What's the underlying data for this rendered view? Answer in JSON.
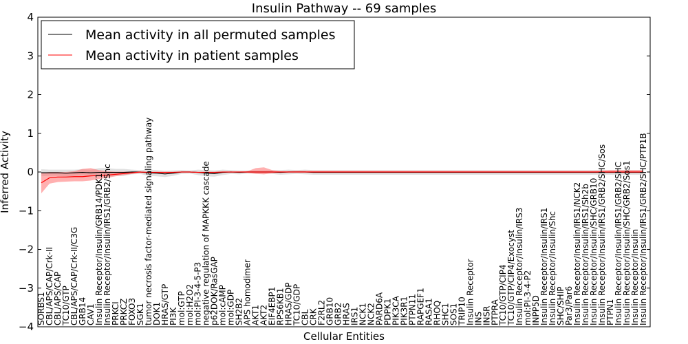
{
  "chart_data": {
    "type": "line",
    "title": "Insulin Pathway -- 69 samples",
    "xlabel": "Cellular Entities",
    "ylabel": "Inferred Activity",
    "ylim": [
      -4,
      4
    ],
    "yticks": [
      "4",
      "3",
      "2",
      "1",
      "0",
      "−1",
      "−2",
      "−3",
      "−4"
    ],
    "grid": false,
    "legend_position": "top-left",
    "colors": {
      "permuted": "#000000",
      "patient": "#ff0000",
      "permuted_band": "#c8c8c8",
      "patient_band": "#ff7070"
    },
    "categories": [
      "SORBS1",
      "CBL/APS/CAP/Crk-II",
      "CBL/APS/CAP",
      "TC10/GTP",
      "CBL/APS/CAP/Crk-II/C3G",
      "GRB14",
      "CAV1",
      "Insulin Receptor/Insulin/GRB14/PDK1",
      "Insulin Receptor/Insulin/IRS1/GRB2/Shc",
      "PRKCI",
      "PRKCZ",
      "FOXO3",
      "SGK1",
      "tumor necrosis factor-mediated signaling pathway",
      "DOK1",
      "HRAS/GTP",
      "PI3K",
      "mol:GTP",
      "mol:H2O2",
      "mol:PI-3-4-5-P3",
      "negative regulation of MAPKKK cascade",
      "p62DOK/RasGAP",
      "mol:cAMP",
      "mol:GDP",
      "SH2B2",
      "APS homodimer",
      "AKT1",
      "AKT2",
      "EIF4EBP1",
      "RPS6KB1",
      "HRAS/GDP",
      "TC10/GDP",
      "CBL",
      "CRK",
      "F2RL2",
      "GRB10",
      "GRB2",
      "HRAS",
      "IRS1",
      "NCK1",
      "NCK2",
      "PARD6A",
      "PDPK1",
      "PIK3CA",
      "PIK3R1",
      "PTPN11",
      "RAPGEF1",
      "RASA1",
      "RHOQ",
      "SHC1",
      "SOS1",
      "TRIP10",
      "Insulin Receptor",
      "INS",
      "INSR",
      "PTPRA",
      "TC10/GTP/CIP4",
      "TC10/GTP/CIP4/Exocyst",
      "Insulin Receptor/Insulin/IRS3",
      "mol:PI-3-4-P2",
      "INPP5D",
      "Insulin Receptor/Insulin/IRS1",
      "Insulin Receptor/Insulin/Shc",
      "SHC/SHIP",
      "Par3/Par6",
      "Insulin Receptor/Insulin/IRS1/NCK2",
      "Insulin Receptor/Insulin/IRS1/Sh2b",
      "Insulin Receptor/Insulin/SHC/GRB10",
      "Insulin Receptor/Insulin/IRS1/GRB2/SHC/Sos",
      "PTPN1",
      "Insulin Receptor/Insulin/IRS1/GRB2/SHC",
      "Insulin Receptor/Insulin/SHC/GRB2/Sos1",
      "Insulin Receptor/Insulin",
      "Insulin Receptor/Insulin/IRS1/GRB2/SHC/PTP1B"
    ],
    "series": [
      {
        "name": "Mean activity in all permuted samples",
        "values": [
          -0.02,
          -0.02,
          -0.02,
          -0.03,
          -0.02,
          -0.01,
          -0.02,
          -0.01,
          -0.01,
          -0.01,
          -0.01,
          0.0,
          0.0,
          -0.02,
          -0.03,
          -0.05,
          -0.03,
          0.0,
          0.0,
          -0.01,
          -0.03,
          -0.04,
          -0.01,
          0.0,
          -0.01,
          0.0,
          0.0,
          0.0,
          0.0,
          -0.01,
          0.0,
          0.0,
          0.0,
          -0.01,
          -0.01,
          -0.01,
          -0.01,
          -0.01,
          -0.01,
          -0.01,
          -0.01,
          -0.01,
          -0.01,
          -0.01,
          -0.01,
          -0.01,
          -0.01,
          -0.01,
          -0.01,
          -0.01,
          -0.01,
          -0.01,
          -0.01,
          -0.01,
          -0.01,
          -0.01,
          -0.01,
          -0.01,
          -0.01,
          -0.01,
          -0.01,
          -0.01,
          -0.01,
          -0.01,
          -0.01,
          -0.01,
          -0.01,
          -0.01,
          -0.01,
          -0.01,
          -0.01,
          -0.01,
          -0.01,
          -0.01
        ],
        "lower": [
          -0.11,
          -0.1,
          -0.1,
          -0.12,
          -0.1,
          -0.09,
          -0.1,
          -0.12,
          -0.12,
          -0.1,
          -0.1,
          -0.06,
          -0.05,
          -0.1,
          -0.11,
          -0.13,
          -0.1,
          -0.05,
          -0.04,
          -0.08,
          -0.11,
          -0.12,
          -0.08,
          -0.05,
          -0.06,
          -0.04,
          -0.04,
          -0.04,
          -0.05,
          -0.07,
          -0.06,
          -0.05,
          -0.06,
          -0.07,
          -0.07,
          -0.07,
          -0.07,
          -0.07,
          -0.07,
          -0.07,
          -0.07,
          -0.07,
          -0.07,
          -0.07,
          -0.07,
          -0.07,
          -0.07,
          -0.07,
          -0.07,
          -0.07,
          -0.07,
          -0.07,
          -0.07,
          -0.07,
          -0.07,
          -0.07,
          -0.07,
          -0.07,
          -0.07,
          -0.07,
          -0.07,
          -0.07,
          -0.07,
          -0.07,
          -0.07,
          -0.07,
          -0.07,
          -0.07,
          -0.07,
          -0.07,
          -0.07,
          -0.07,
          -0.07,
          -0.07
        ],
        "upper": [
          0.07,
          0.06,
          0.06,
          0.06,
          0.06,
          0.07,
          0.06,
          0.1,
          0.1,
          0.08,
          0.08,
          0.06,
          0.05,
          0.06,
          0.05,
          0.03,
          0.04,
          0.05,
          0.04,
          0.06,
          0.05,
          0.04,
          0.06,
          0.05,
          0.04,
          0.04,
          0.04,
          0.04,
          0.05,
          0.05,
          0.06,
          0.05,
          0.06,
          0.05,
          0.05,
          0.05,
          0.05,
          0.05,
          0.05,
          0.05,
          0.05,
          0.05,
          0.05,
          0.05,
          0.05,
          0.05,
          0.05,
          0.05,
          0.05,
          0.05,
          0.05,
          0.05,
          0.05,
          0.05,
          0.05,
          0.05,
          0.05,
          0.05,
          0.05,
          0.05,
          0.05,
          0.05,
          0.05,
          0.05,
          0.05,
          0.05,
          0.05,
          0.05,
          0.05,
          0.05,
          0.05,
          0.05,
          0.05,
          0.05
        ]
      },
      {
        "name": "Mean activity in patient samples",
        "values": [
          -0.28,
          -0.15,
          -0.13,
          -0.13,
          -0.12,
          -0.12,
          -0.1,
          -0.09,
          -0.08,
          -0.06,
          -0.04,
          -0.02,
          0.0,
          -0.01,
          -0.01,
          -0.01,
          -0.01,
          0.0,
          0.0,
          -0.01,
          -0.01,
          -0.01,
          0.0,
          0.0,
          0.0,
          0.0,
          0.0,
          0.0,
          0.0,
          0.0,
          0.0,
          0.0,
          0.0,
          0.0,
          0.0,
          0.0,
          0.0,
          0.0,
          0.0,
          0.0,
          0.0,
          0.0,
          0.0,
          0.0,
          0.0,
          0.0,
          0.0,
          0.0,
          0.0,
          0.0,
          0.0,
          0.0,
          0.0,
          0.0,
          0.0,
          0.0,
          0.0,
          0.0,
          0.0,
          0.0,
          0.0,
          0.0,
          0.0,
          0.0,
          0.0,
          0.0,
          0.0,
          0.0,
          0.0,
          0.0,
          0.0,
          0.0,
          0.0,
          0.0
        ],
        "lower": [
          -0.55,
          -0.3,
          -0.26,
          -0.25,
          -0.24,
          -0.24,
          -0.22,
          -0.18,
          -0.15,
          -0.11,
          -0.08,
          -0.05,
          -0.02,
          -0.03,
          -0.03,
          -0.03,
          -0.03,
          -0.01,
          -0.01,
          -0.02,
          -0.02,
          -0.02,
          -0.01,
          -0.01,
          -0.01,
          -0.02,
          -0.05,
          -0.06,
          -0.03,
          -0.02,
          -0.01,
          -0.01,
          -0.01,
          -0.01,
          -0.01,
          -0.01,
          -0.01,
          -0.01,
          -0.01,
          -0.01,
          -0.01,
          -0.01,
          -0.01,
          -0.01,
          -0.01,
          -0.01,
          -0.01,
          -0.01,
          -0.01,
          -0.01,
          -0.01,
          -0.01,
          -0.01,
          -0.01,
          -0.01,
          -0.01,
          -0.01,
          -0.01,
          -0.01,
          -0.01,
          -0.01,
          -0.01,
          -0.01,
          -0.01,
          -0.01,
          -0.01,
          -0.01,
          -0.01,
          -0.01,
          -0.01,
          -0.01,
          -0.01,
          -0.01,
          -0.01
        ],
        "upper": [
          -0.02,
          0.0,
          0.0,
          0.0,
          0.02,
          0.08,
          0.1,
          0.05,
          0.02,
          0.01,
          0.01,
          0.01,
          0.01,
          0.01,
          0.01,
          0.01,
          0.01,
          0.01,
          0.01,
          0.01,
          0.01,
          0.01,
          0.01,
          0.01,
          0.01,
          0.02,
          0.1,
          0.12,
          0.05,
          0.02,
          0.02,
          0.03,
          0.03,
          0.03,
          0.03,
          0.03,
          0.03,
          0.03,
          0.03,
          0.03,
          0.03,
          0.03,
          0.03,
          0.03,
          0.03,
          0.03,
          0.03,
          0.03,
          0.03,
          0.03,
          0.03,
          0.03,
          0.03,
          0.03,
          0.03,
          0.03,
          0.03,
          0.03,
          0.03,
          0.03,
          0.03,
          0.03,
          0.03,
          0.03,
          0.03,
          0.03,
          0.03,
          0.03,
          0.04,
          0.05,
          0.05,
          0.05,
          0.05,
          0.05
        ]
      }
    ]
  }
}
